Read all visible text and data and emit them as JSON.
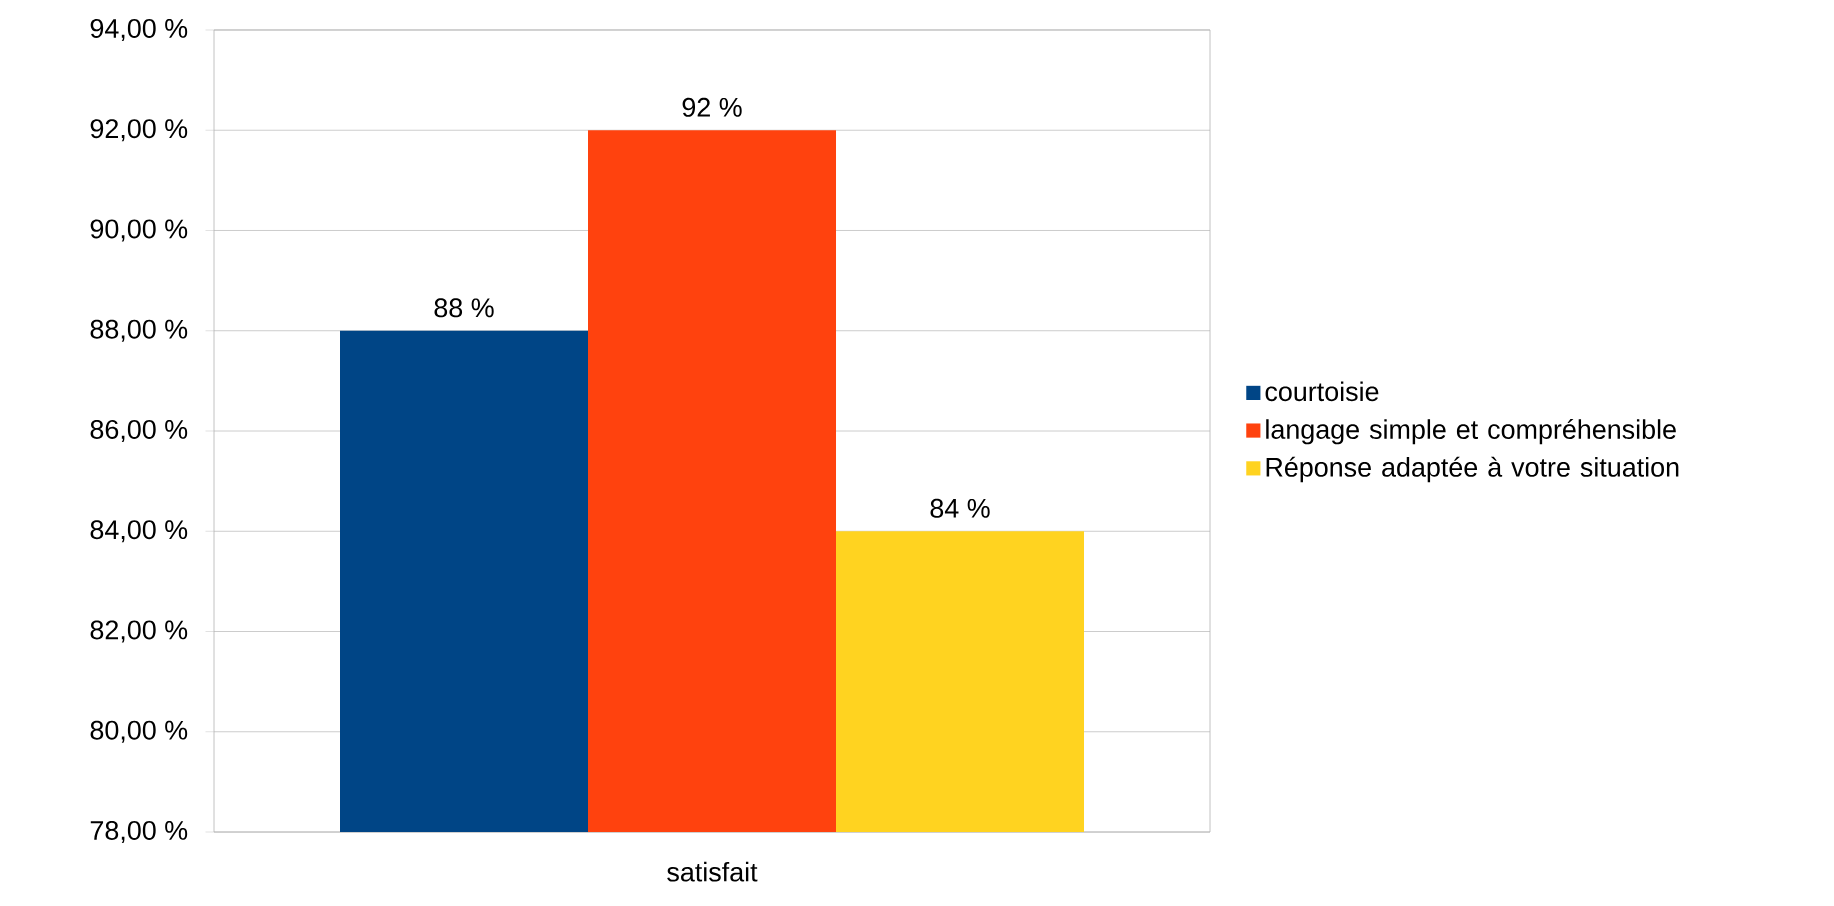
{
  "chart_data": {
    "type": "bar",
    "categories": [
      "satisfait"
    ],
    "series": [
      {
        "name": "courtoisie",
        "color": "#004586",
        "values": [
          88
        ],
        "value_labels": [
          "88 %"
        ]
      },
      {
        "name": "langage simple et compréhensible",
        "color": "#ff420e",
        "values": [
          92
        ],
        "value_labels": [
          "92 %"
        ]
      },
      {
        "name": "Réponse adaptée à votre situation",
        "color": "#ffd320",
        "values": [
          84
        ],
        "value_labels": [
          "84 %"
        ]
      }
    ],
    "ylim": [
      78,
      94
    ],
    "yticks": [
      {
        "value": 78,
        "label": "78,00 %"
      },
      {
        "value": 80,
        "label": "80,00 %"
      },
      {
        "value": 82,
        "label": "82,00 %"
      },
      {
        "value": 84,
        "label": "84,00 %"
      },
      {
        "value": 86,
        "label": "86,00 %"
      },
      {
        "value": 88,
        "label": "88,00 %"
      },
      {
        "value": 90,
        "label": "90,00 %"
      },
      {
        "value": 92,
        "label": "92,00 %"
      },
      {
        "value": 94,
        "label": "94,00 %"
      }
    ],
    "grid": "y",
    "legend": "right"
  }
}
